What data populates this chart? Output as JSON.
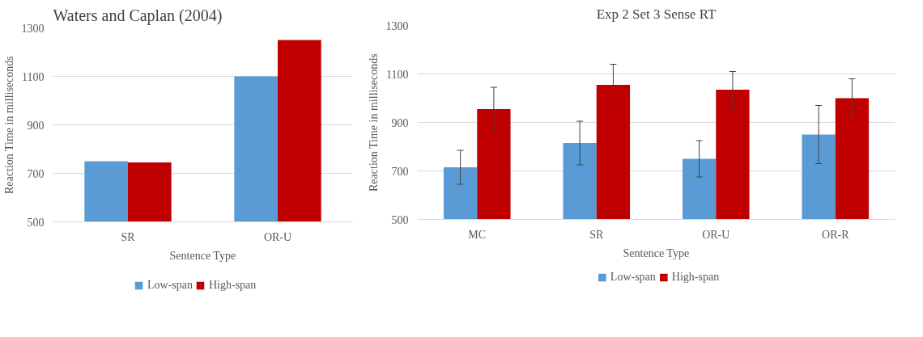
{
  "chart_data": [
    {
      "type": "bar",
      "title": "Waters and Caplan (2004)",
      "xlabel": "Sentence Type",
      "ylabel": "Reaction Time in milliseconds",
      "categories": [
        "SR",
        "OR-U"
      ],
      "series": [
        {
          "name": "Low-span",
          "color": "#5b9bd5",
          "values": [
            750,
            1100
          ]
        },
        {
          "name": "High-span",
          "color": "#c00000",
          "values": [
            745,
            1250
          ]
        }
      ],
      "ylim": [
        500,
        1300
      ],
      "yticks": [
        500,
        700,
        900,
        1100,
        1300
      ],
      "grid": "y",
      "legend": "bottom"
    },
    {
      "type": "bar",
      "title": "Exp 2 Set 3 Sense RT",
      "xlabel": "Sentence Type",
      "ylabel": "Reaction Time in milliseconds",
      "categories": [
        "MC",
        "SR",
        "OR-U",
        "OR-R"
      ],
      "series": [
        {
          "name": "Low-span",
          "color": "#5b9bd5",
          "values": [
            715,
            815,
            750,
            850
          ],
          "errors": [
            70,
            90,
            75,
            120
          ]
        },
        {
          "name": "High-span",
          "color": "#c00000",
          "values": [
            955,
            1055,
            1035,
            1000
          ],
          "errors": [
            90,
            85,
            75,
            80
          ]
        }
      ],
      "ylim": [
        500,
        1300
      ],
      "yticks": [
        500,
        700,
        900,
        1100,
        1300
      ],
      "grid": "y",
      "legend": "bottom"
    }
  ]
}
